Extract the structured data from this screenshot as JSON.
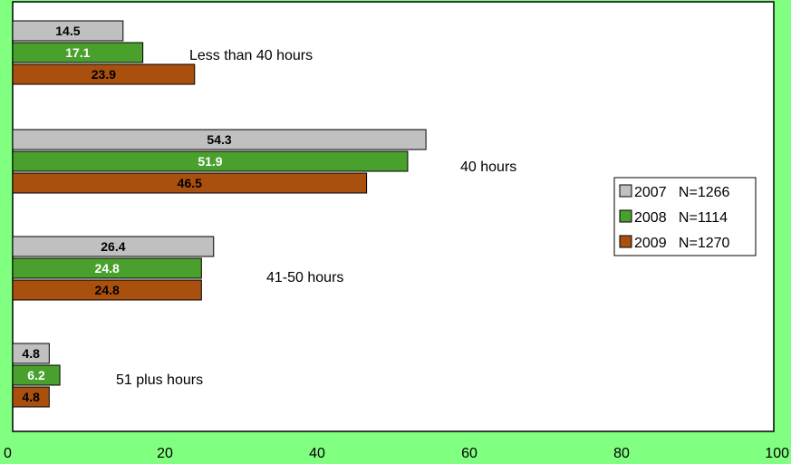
{
  "chart_data": {
    "type": "bar",
    "orientation": "horizontal",
    "categories": [
      "Less than 40 hours",
      "40 hours",
      "41-50 hours",
      "51 plus hours"
    ],
    "series": [
      {
        "name": "2007",
        "n_label": "N=1266",
        "color": "#c0c0c0",
        "label_color": "#000000",
        "values": [
          14.5,
          54.3,
          26.4,
          4.8
        ]
      },
      {
        "name": "2008",
        "n_label": "N=1114",
        "color": "#4aa02c",
        "label_color": "#ffffff",
        "values": [
          17.1,
          51.9,
          24.8,
          6.2
        ]
      },
      {
        "name": "2009",
        "n_label": "N=1270",
        "color": "#a9500f",
        "label_color": "#000000",
        "values": [
          23.9,
          46.5,
          24.8,
          4.8
        ]
      }
    ],
    "xlim": [
      0,
      100
    ],
    "xticks": [
      "0",
      "20",
      "40",
      "60",
      "80",
      "100"
    ],
    "title": "",
    "xlabel": "",
    "ylabel": "",
    "legend_position": "right",
    "grid": false,
    "plot_background": "#ffffff",
    "page_background": "#80ff80"
  }
}
